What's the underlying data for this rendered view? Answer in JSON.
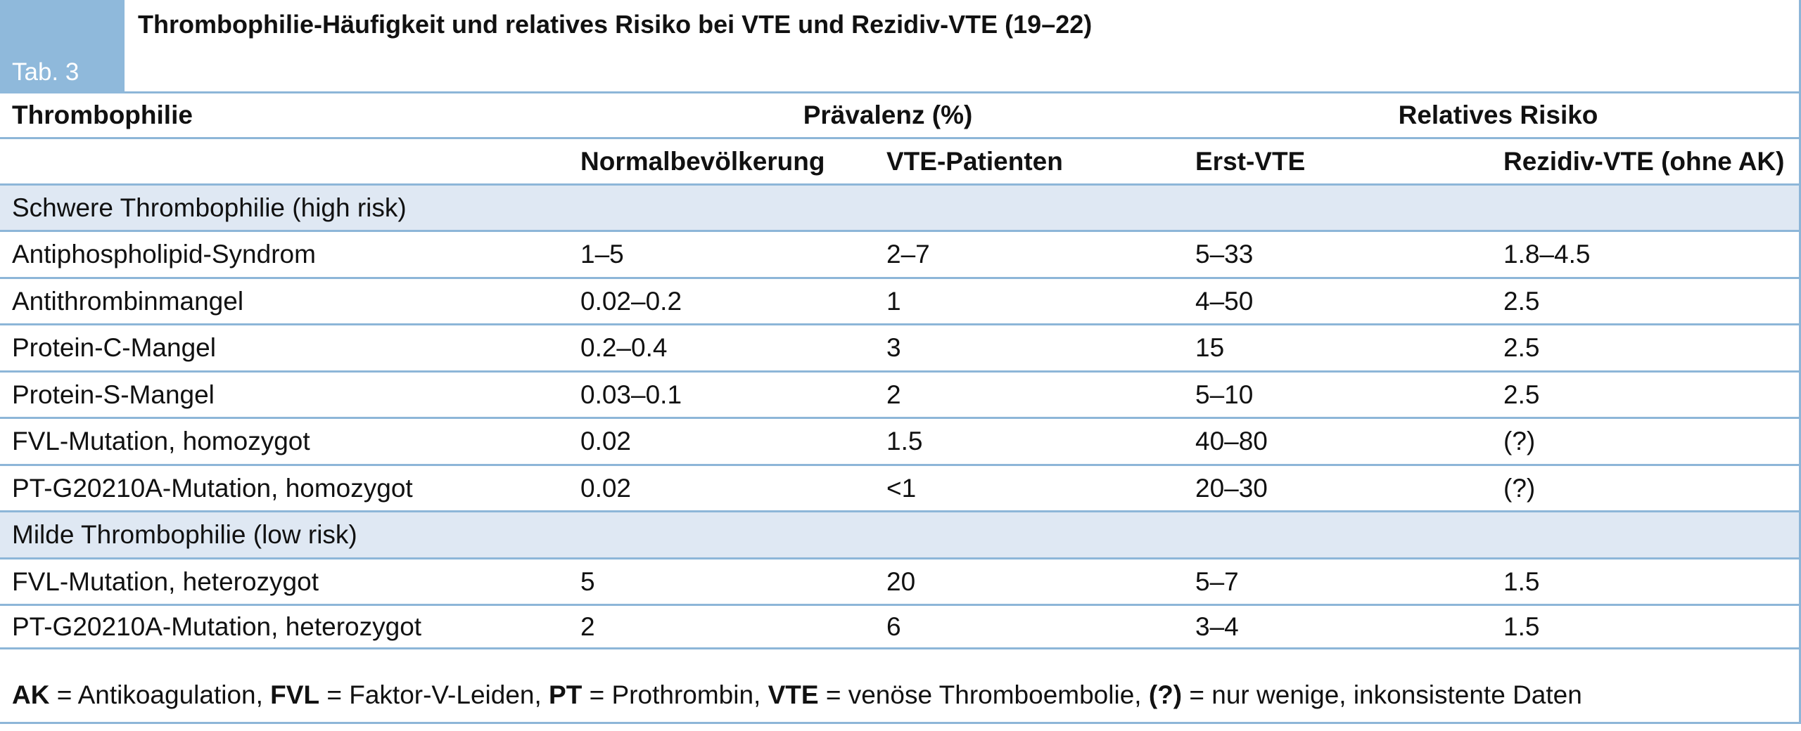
{
  "table": {
    "tab_label": "Tab. 3",
    "title": "Thrombophilie-Häufigkeit und relatives Risiko bei VTE und Rezidiv-VTE (19–22)",
    "header": {
      "col_thrombophilie": "Thrombophilie",
      "group_prevalence": "Prävalenz (%)",
      "group_risk": "Relatives Risiko",
      "sub_normal": "Normalbevölkerung",
      "sub_vte": "VTE-Patienten",
      "sub_erst": "Erst-VTE",
      "sub_rezidiv": "Rezidiv-VTE (ohne AK)"
    },
    "sections": [
      {
        "label": "Schwere Thrombophilie",
        "qualifier": "(high risk)",
        "rows": [
          {
            "name": "Antiphospholipid-Syndrom",
            "normal": "1–5",
            "vte": "2–7",
            "erst": "5–33",
            "rezidiv": "1.8–4.5"
          },
          {
            "name": "Antithrombinmangel",
            "normal": "0.02–0.2",
            "vte": "1",
            "erst": "4–50",
            "rezidiv": "2.5"
          },
          {
            "name": "Protein-C-Mangel",
            "normal": "0.2–0.4",
            "vte": "3",
            "erst": "15",
            "rezidiv": "2.5"
          },
          {
            "name": "Protein-S-Mangel",
            "normal": "0.03–0.1",
            "vte": "2",
            "erst": "5–10",
            "rezidiv": "2.5"
          },
          {
            "name": "FVL-Mutation, homozygot",
            "normal": "0.02",
            "vte": "1.5",
            "erst": "40–80",
            "rezidiv": "(?)"
          },
          {
            "name": "PT-G20210A-Mutation, homozygot",
            "normal": "0.02",
            "vte": "<1",
            "erst": "20–30",
            "rezidiv": "(?)"
          }
        ]
      },
      {
        "label": "Milde Thrombophilie",
        "qualifier": "(low risk)",
        "rows": [
          {
            "name": "FVL-Mutation, heterozygot",
            "normal": "5",
            "vte": "20",
            "erst": "5–7",
            "rezidiv": "1.5"
          },
          {
            "name": "PT-G20210A-Mutation, heterozygot",
            "normal": "2",
            "vte": "6",
            "erst": "3–4",
            "rezidiv": "1.5"
          }
        ]
      }
    ],
    "footnote": [
      {
        "abbr": "AK",
        "text": " = Antikoagulation, "
      },
      {
        "abbr": "FVL",
        "text": " = Faktor-V-Leiden, "
      },
      {
        "abbr": "PT",
        "text": " = Prothrombin, "
      },
      {
        "abbr": "VTE",
        "text": " = venöse Thromboembolie, "
      },
      {
        "abbr": "(?)",
        "text": " = nur wenige, inkonsistente Daten"
      }
    ]
  }
}
